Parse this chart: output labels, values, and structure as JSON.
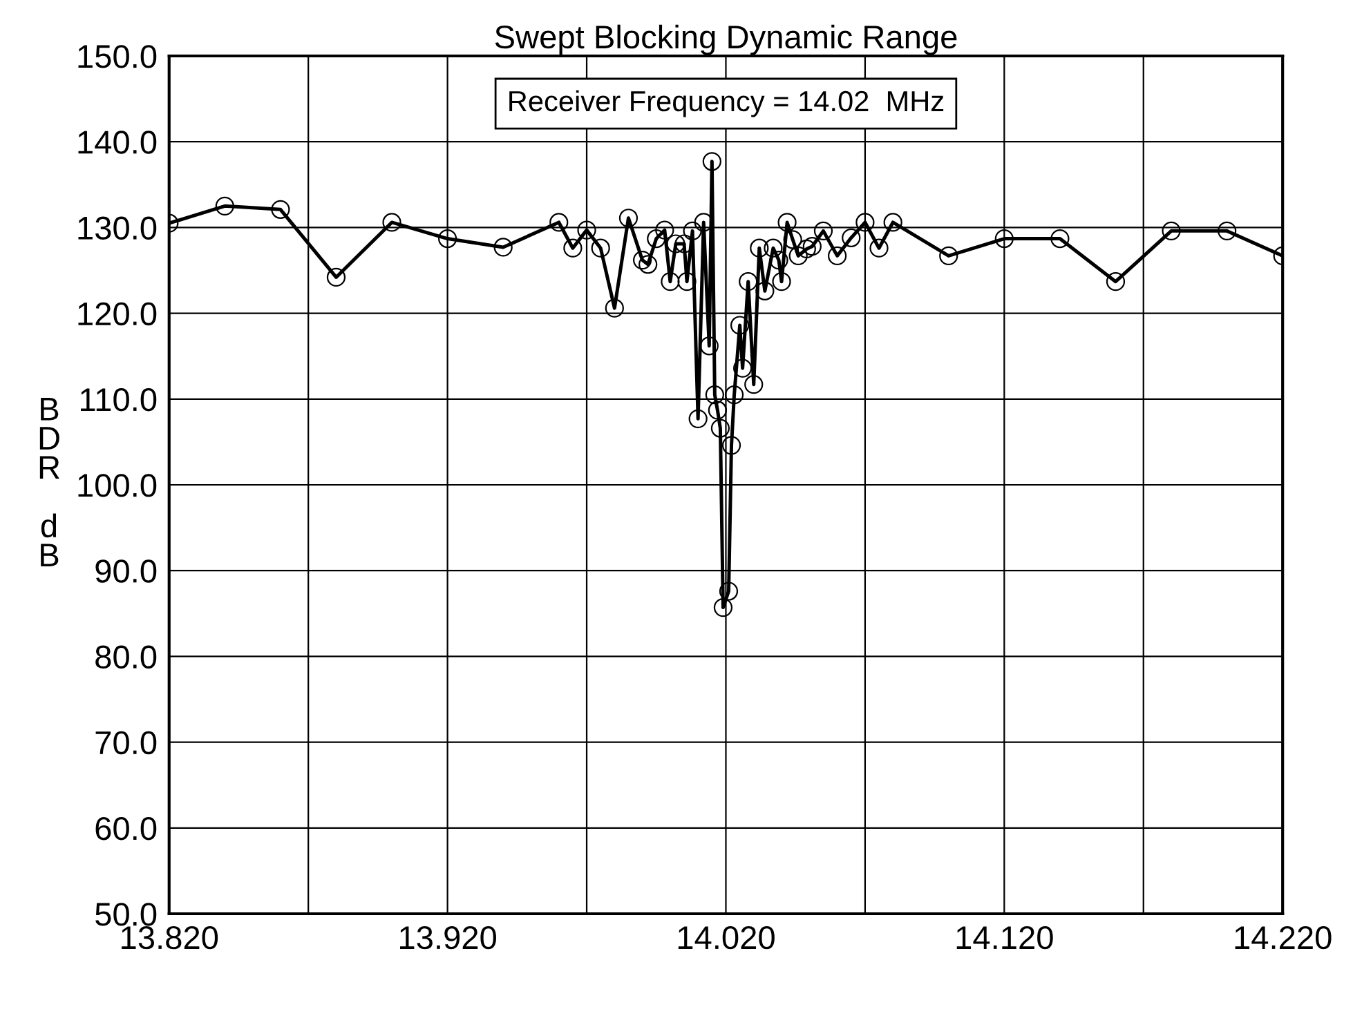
{
  "chart_data": {
    "type": "line",
    "title": "Swept Blocking Dynamic Range",
    "ylabel": "B\nD\nR\n\nd\nB",
    "annotations": [
      "Receiver Frequency = 14.02  MHz"
    ],
    "x": [
      13.82,
      13.84,
      13.86,
      13.88,
      13.9,
      13.92,
      13.94,
      13.96,
      13.965,
      13.97,
      13.975,
      13.98,
      13.985,
      13.99,
      13.992,
      13.995,
      13.998,
      14.0,
      14.002,
      14.005,
      14.006,
      14.008,
      14.01,
      14.012,
      14.014,
      14.015,
      14.016,
      14.017,
      14.018,
      14.019,
      14.021,
      14.022,
      14.023,
      14.025,
      14.026,
      14.028,
      14.03,
      14.032,
      14.034,
      14.037,
      14.039,
      14.04,
      14.042,
      14.044,
      14.046,
      14.049,
      14.051,
      14.055,
      14.06,
      14.065,
      14.07,
      14.075,
      14.08,
      14.1,
      14.12,
      14.14,
      14.16,
      14.18,
      14.2,
      14.22
    ],
    "series": [
      {
        "color": "#000000",
        "values": [
          130.5,
          132.5,
          132.1,
          124.2,
          130.6,
          128.7,
          127.7,
          130.6,
          127.6,
          129.7,
          127.6,
          120.6,
          131.1,
          126.2,
          125.7,
          128.7,
          129.7,
          123.7,
          128.1,
          128.1,
          123.7,
          129.6,
          107.7,
          130.6,
          116.2,
          137.7,
          110.5,
          108.7,
          106.6,
          85.7,
          87.6,
          104.6,
          110.5,
          118.6,
          113.6,
          123.7,
          111.7,
          127.6,
          122.6,
          127.6,
          126.2,
          123.7,
          130.6,
          128.6,
          126.7,
          127.5,
          127.8,
          129.6,
          126.7,
          128.8,
          130.6,
          127.6,
          130.6,
          126.7,
          128.7,
          128.7,
          123.7,
          129.6,
          129.6,
          126.7
        ]
      }
    ],
    "xlim": [
      13.82,
      14.22
    ],
    "ylim": [
      50,
      150
    ],
    "xticks": [
      {
        "value": 13.82,
        "label": "13.820"
      },
      {
        "value": 13.87,
        "label": null
      },
      {
        "value": 13.92,
        "label": "13.920"
      },
      {
        "value": 13.97,
        "label": null
      },
      {
        "value": 14.02,
        "label": "14.020"
      },
      {
        "value": 14.07,
        "label": null
      },
      {
        "value": 14.12,
        "label": "14.120"
      },
      {
        "value": 14.17,
        "label": null
      },
      {
        "value": 14.22,
        "label": "14.220"
      }
    ],
    "yticks": [
      {
        "value": 50,
        "label": "50.0"
      },
      {
        "value": 60,
        "label": "60.0"
      },
      {
        "value": 70,
        "label": "70.0"
      },
      {
        "value": 80,
        "label": "80.0"
      },
      {
        "value": 90,
        "label": "90.0"
      },
      {
        "value": 100,
        "label": "100.0"
      },
      {
        "value": 110,
        "label": "110.0"
      },
      {
        "value": 120,
        "label": "120.0"
      },
      {
        "value": 130,
        "label": "130.0"
      },
      {
        "value": 140,
        "label": "140.0"
      },
      {
        "value": 150,
        "label": "150.0"
      }
    ],
    "grid": true,
    "marker": "circle",
    "line_style": "solid",
    "legend": false
  }
}
